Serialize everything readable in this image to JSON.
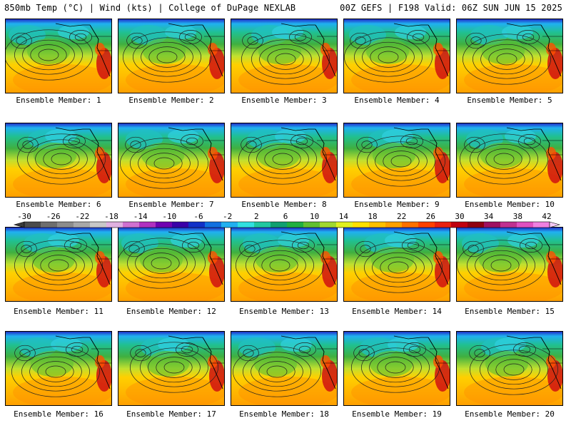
{
  "header": {
    "left": "850mb Temp (°C) | Wind (kts) | College of DuPage NEXLAB",
    "right": "00Z GEFS | F198 Valid: 06Z SUN JUN 15 2025"
  },
  "colorbar": {
    "ticks": [
      "-30",
      "-26",
      "-22",
      "-18",
      "-14",
      "-10",
      "-6",
      "-2",
      "2",
      "6",
      "10",
      "14",
      "18",
      "22",
      "26",
      "30",
      "34",
      "38",
      "42"
    ],
    "colors": [
      "#4b4b4b",
      "#6e6e6e",
      "#8c8c8c",
      "#a8a8a8",
      "#c8c8c8",
      "#e0b0e0",
      "#d070d0",
      "#b030c0",
      "#7000b0",
      "#3a00a8",
      "#1030c8",
      "#1070e0",
      "#20b0f0",
      "#30e0e0",
      "#20c8a0",
      "#10a070",
      "#20b040",
      "#60c030",
      "#a0d830",
      "#e0f020",
      "#ffe000",
      "#ffc000",
      "#ffa000",
      "#ff7000",
      "#ff4000",
      "#e82010",
      "#c00010",
      "#900010",
      "#a01060",
      "#c03090",
      "#e050c0",
      "#f080e0"
    ]
  },
  "panels": [
    {
      "label": "Ensemble Member: 1"
    },
    {
      "label": "Ensemble Member: 2"
    },
    {
      "label": "Ensemble Member: 3"
    },
    {
      "label": "Ensemble Member: 4"
    },
    {
      "label": "Ensemble Member: 5"
    },
    {
      "label": "Ensemble Member: 6"
    },
    {
      "label": "Ensemble Member: 7"
    },
    {
      "label": "Ensemble Member: 8"
    },
    {
      "label": "Ensemble Member: 9"
    },
    {
      "label": "Ensemble Member: 10"
    },
    {
      "label": "Ensemble Member: 11"
    },
    {
      "label": "Ensemble Member: 12"
    },
    {
      "label": "Ensemble Member: 13"
    },
    {
      "label": "Ensemble Member: 14"
    },
    {
      "label": "Ensemble Member: 15"
    },
    {
      "label": "Ensemble Member: 16"
    },
    {
      "label": "Ensemble Member: 17"
    },
    {
      "label": "Ensemble Member: 18"
    },
    {
      "label": "Ensemble Member: 19"
    },
    {
      "label": "Ensemble Member: 20"
    }
  ]
}
